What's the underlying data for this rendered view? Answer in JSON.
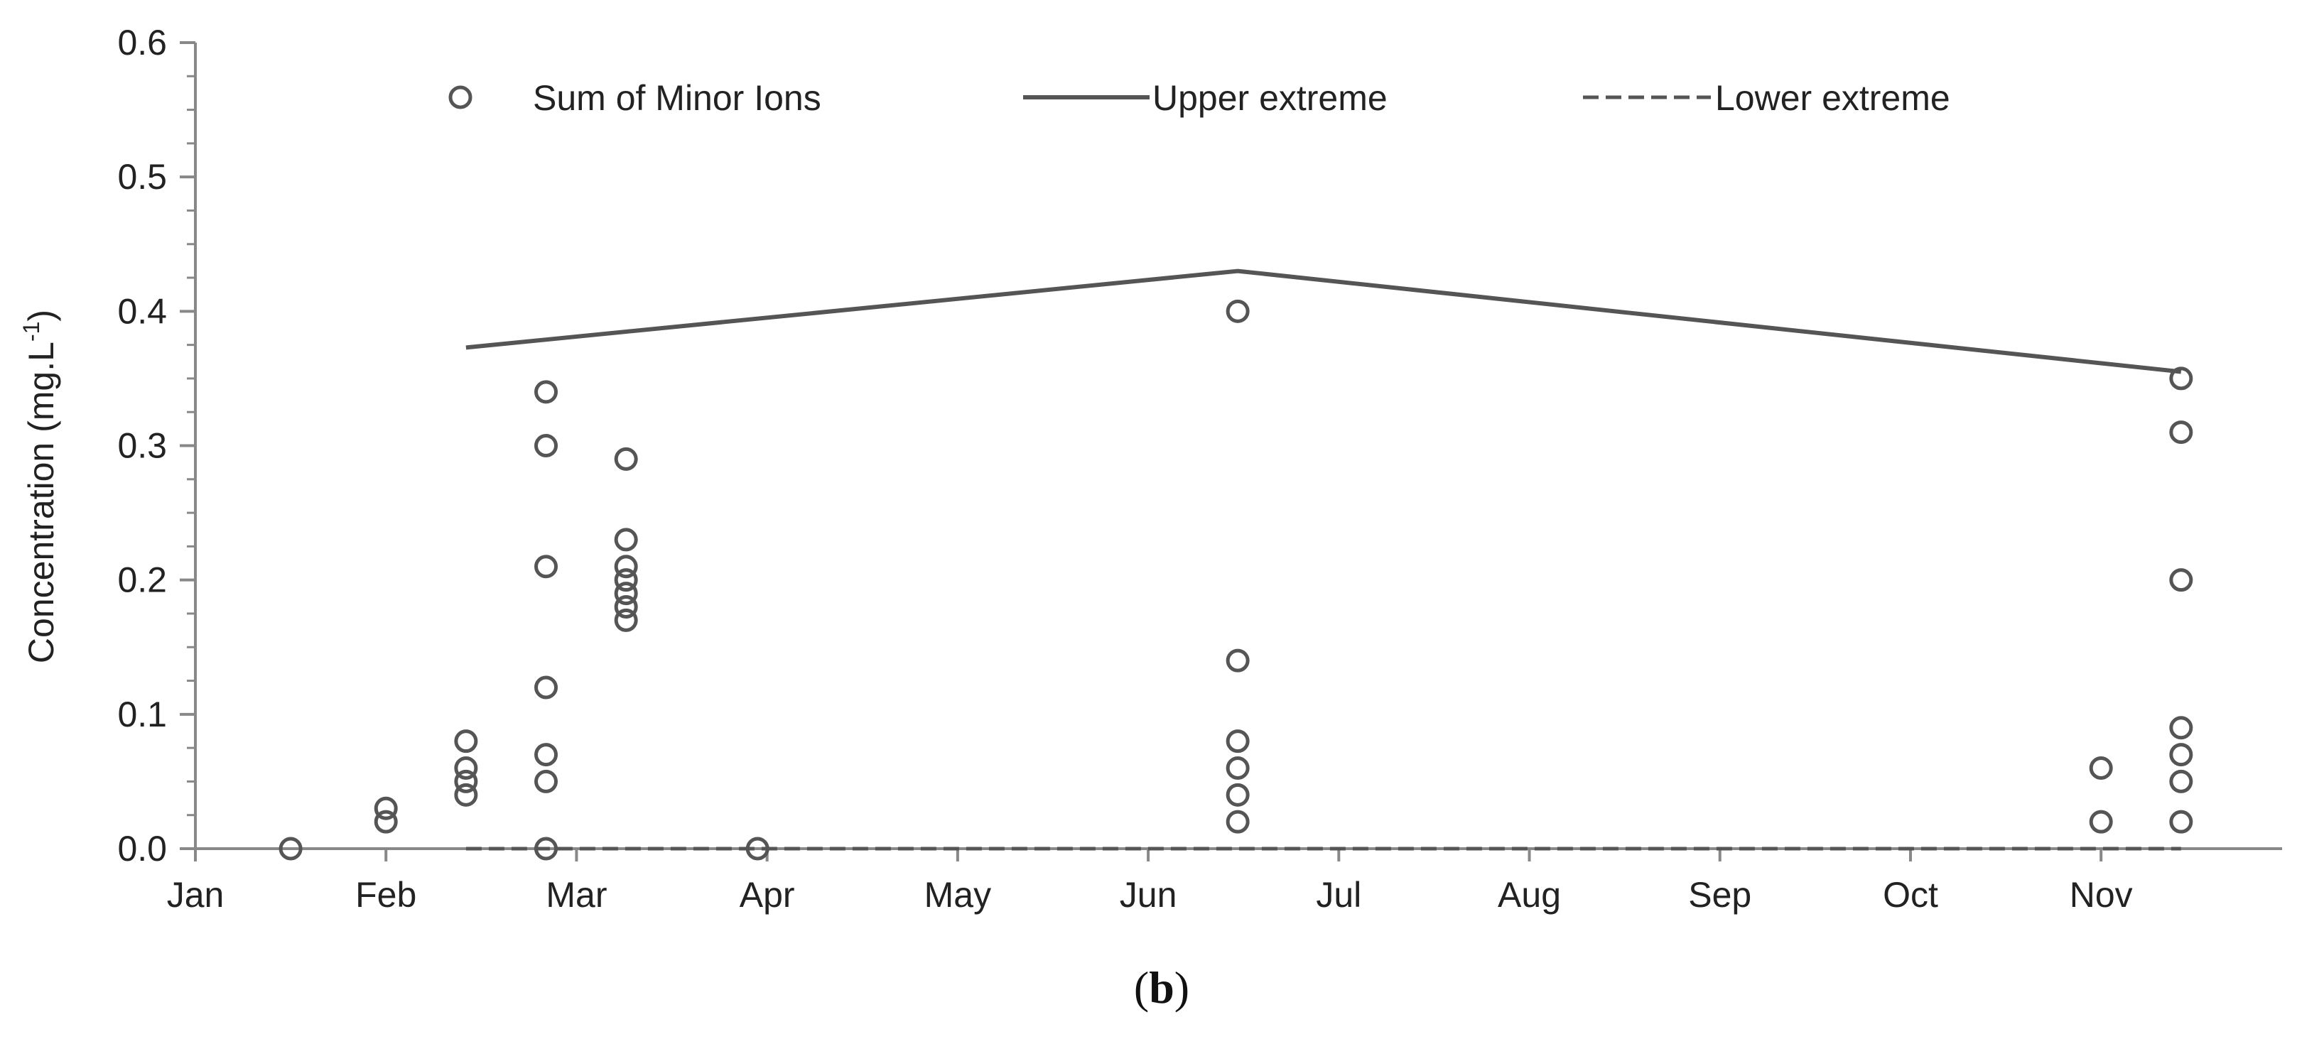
{
  "chart_data": {
    "type": "scatter",
    "ylabel": "Concentration (mg.L",
    "ylabel_sup": "-1",
    "ylabel_close": ")",
    "ylim": [
      0,
      0.6
    ],
    "y_ticks": [
      "0.0",
      "0.1",
      "0.2",
      "0.3",
      "0.4",
      "0.5",
      "0.6"
    ],
    "x_ticks": [
      "Jan",
      "Feb",
      "Mar",
      "Apr",
      "May",
      "Jun",
      "Jul",
      "Aug",
      "Sep",
      "Oct",
      "Nov"
    ],
    "x_unit": "month",
    "xlim": [
      0,
      10.95
    ],
    "legend_position": "top",
    "panel_label": {
      "open": "(",
      "letter": "b",
      "close": ")"
    },
    "colors": {
      "series": "#555555",
      "axis": "#888888",
      "text": "#222222"
    },
    "series": [
      {
        "name": "Sum of Minor Ions",
        "kind": "points",
        "marker": "open-circle",
        "points": [
          [
            0.5,
            0.0
          ],
          [
            1.0,
            0.02
          ],
          [
            1.0,
            0.03
          ],
          [
            1.42,
            0.04
          ],
          [
            1.42,
            0.05
          ],
          [
            1.42,
            0.06
          ],
          [
            1.42,
            0.08
          ],
          [
            1.84,
            0.0
          ],
          [
            1.84,
            0.05
          ],
          [
            1.84,
            0.07
          ],
          [
            1.84,
            0.12
          ],
          [
            1.84,
            0.21
          ],
          [
            1.84,
            0.3
          ],
          [
            1.84,
            0.34
          ],
          [
            2.26,
            0.17
          ],
          [
            2.26,
            0.18
          ],
          [
            2.26,
            0.19
          ],
          [
            2.26,
            0.2
          ],
          [
            2.26,
            0.21
          ],
          [
            2.26,
            0.23
          ],
          [
            2.26,
            0.29
          ],
          [
            2.95,
            0.0
          ],
          [
            5.47,
            0.02
          ],
          [
            5.47,
            0.04
          ],
          [
            5.47,
            0.06
          ],
          [
            5.47,
            0.08
          ],
          [
            5.47,
            0.14
          ],
          [
            5.47,
            0.4
          ],
          [
            10.0,
            0.02
          ],
          [
            10.0,
            0.06
          ],
          [
            10.42,
            0.02
          ],
          [
            10.42,
            0.05
          ],
          [
            10.42,
            0.07
          ],
          [
            10.42,
            0.09
          ],
          [
            10.42,
            0.2
          ],
          [
            10.42,
            0.31
          ],
          [
            10.42,
            0.35
          ]
        ]
      },
      {
        "name": "Upper extreme",
        "kind": "line",
        "dash": "solid",
        "points": [
          [
            1.42,
            0.373
          ],
          [
            5.47,
            0.43
          ],
          [
            10.42,
            0.355
          ]
        ]
      },
      {
        "name": "Lower extreme",
        "kind": "line",
        "dash": "dashed",
        "points": [
          [
            1.42,
            0.0
          ],
          [
            10.42,
            0.0
          ]
        ]
      }
    ]
  }
}
